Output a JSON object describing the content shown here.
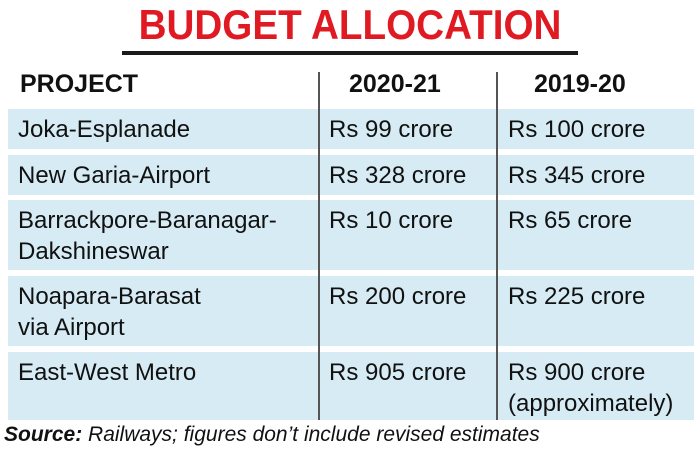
{
  "title": "BUDGET ALLOCATION",
  "headers": {
    "project": "PROJECT",
    "year1": "2020-21",
    "year2": "2019-20"
  },
  "rows": [
    {
      "project": [
        "Joka-Esplanade"
      ],
      "year1": [
        "Rs 99 crore"
      ],
      "year2": [
        "Rs 100 crore"
      ]
    },
    {
      "project": [
        "New Garia-Airport"
      ],
      "year1": [
        "Rs 328 crore"
      ],
      "year2": [
        "Rs 345 crore"
      ]
    },
    {
      "project": [
        "Barrackpore-Baranagar-",
        "Dakshineswar"
      ],
      "year1": [
        "Rs 10 crore"
      ],
      "year2": [
        "Rs 65 crore"
      ]
    },
    {
      "project": [
        "Noapara-Barasat",
        "via Airport"
      ],
      "year1": [
        "Rs 200 crore"
      ],
      "year2": [
        "Rs 225 crore"
      ]
    },
    {
      "project": [
        "East-West Metro"
      ],
      "year1": [
        "Rs 905 crore"
      ],
      "year2": [
        "Rs 900 crore",
        "(approximately)"
      ]
    }
  ],
  "source": {
    "label": "Source:",
    "text": " Railways; figures don’t include revised estimates"
  },
  "colors": {
    "title": "#e01a22",
    "row_bg": "#d6ebf4",
    "rule": "#1b1b1b"
  }
}
